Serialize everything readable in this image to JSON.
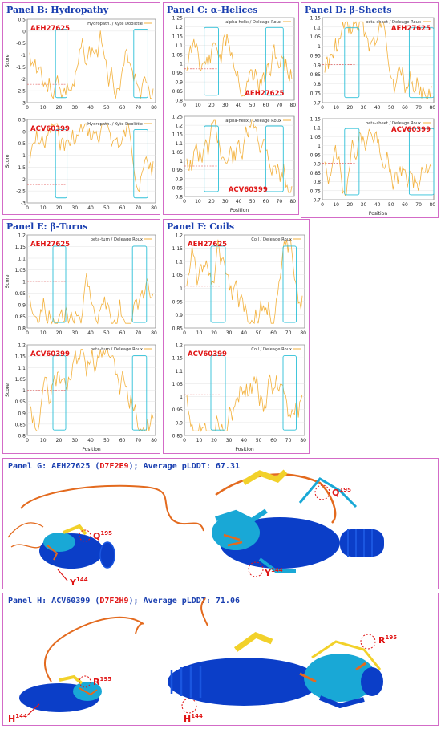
{
  "figure": {
    "panel_b": {
      "title": "Panel B: Hydropathy",
      "top": {
        "tag": "AEH27625",
        "legend": "Hydropath. / Kyte  Doolittle",
        "ylabel": "Score",
        "yticks": [
          "0.5",
          "0",
          "-0.5",
          "-1",
          "-1.5",
          "-2",
          "-2.5",
          "-3"
        ],
        "xticks": [
          "0",
          "10",
          "20",
          "30",
          "40",
          "50",
          "60",
          "70",
          "80"
        ]
      },
      "bottom": {
        "tag": "ACV60399",
        "legend": "Hydropath. / Kyte  Doolittle",
        "ylabel": "Score",
        "yticks": [
          "0.5",
          "0",
          "-0.5",
          "-1",
          "-1.5",
          "-2",
          "-2.5",
          "-3"
        ],
        "xticks": [
          "0",
          "10",
          "20",
          "30",
          "40",
          "50",
          "60",
          "70",
          "80"
        ]
      }
    },
    "panel_c": {
      "title": "Panel C: α-Helices",
      "top": {
        "tag": "AEH27625",
        "legend": "alpha-helix / Deleage  Roux",
        "yticks": [
          "1.25",
          "1.2",
          "1.15",
          "1.1",
          "1.05",
          "1",
          "0.95",
          "0.9",
          "0.85",
          "0.8"
        ],
        "xticks": [
          "0",
          "10",
          "20",
          "30",
          "40",
          "50",
          "60",
          "70",
          "80"
        ]
      },
      "bottom": {
        "tag": "ACV60399",
        "legend": "alpha-helix / Deleage  Roux",
        "xlabel": "Position",
        "yticks": [
          "1.25",
          "1.2",
          "1.15",
          "1.1",
          "1.05",
          "1",
          "0.95",
          "0.9",
          "0.85",
          "0.8"
        ],
        "xticks": [
          "0",
          "10",
          "20",
          "30",
          "40",
          "50",
          "60",
          "70",
          "80"
        ]
      }
    },
    "panel_d": {
      "title": "Panel D: β-Sheets",
      "top": {
        "tag": "AEH27625",
        "legend": "beta-sheet / Deleage  Roux",
        "yticks": [
          "1.15",
          "1.1",
          "1.05",
          "1",
          "0.95",
          "0.9",
          "0.85",
          "0.8",
          "0.75",
          "0.7"
        ],
        "xticks": [
          "0",
          "10",
          "20",
          "30",
          "40",
          "50",
          "60",
          "70",
          "80"
        ]
      },
      "bottom": {
        "tag": "ACV60399",
        "legend": "beta-sheet / Deleage  Roux",
        "xlabel": "Position",
        "yticks": [
          "1.15",
          "1.1",
          "1.05",
          "1",
          "0.95",
          "0.9",
          "0.85",
          "0.8",
          "0.75",
          "0.7"
        ],
        "xticks": [
          "0",
          "10",
          "20",
          "30",
          "40",
          "50",
          "60",
          "70",
          "80"
        ]
      }
    },
    "panel_e": {
      "title": "Panel E: β-Turns",
      "top": {
        "tag": "AEH27625",
        "legend": "beta-turn / Deleage  Roux",
        "ylabel": "Score",
        "yticks": [
          "1.2",
          "1.15",
          "1.1",
          "1.05",
          "1",
          "0.95",
          "0.9",
          "0.85",
          "0.8"
        ],
        "xticks": [
          "0",
          "10",
          "20",
          "30",
          "40",
          "50",
          "60",
          "70",
          "80"
        ]
      },
      "bottom": {
        "tag": "ACV60399",
        "legend": "beta-turn / Deleage  Roux",
        "ylabel": "Score",
        "xlabel": "Position",
        "yticks": [
          "1.2",
          "1.15",
          "1.1",
          "1.05",
          "1",
          "0.95",
          "0.9",
          "0.85",
          "0.8"
        ],
        "xticks": [
          "0",
          "10",
          "20",
          "30",
          "40",
          "50",
          "60",
          "70",
          "80"
        ]
      }
    },
    "panel_f": {
      "title": "Panel F: Coils",
      "top": {
        "tag": "AEH27625",
        "legend": "Coil / Deleage  Roux",
        "yticks": [
          "1.2",
          "1.15",
          "1.1",
          "1.05",
          "1",
          "0.95",
          "0.9",
          "0.85"
        ],
        "xticks": [
          "0",
          "10",
          "20",
          "30",
          "40",
          "50",
          "60",
          "70",
          "80"
        ]
      },
      "bottom": {
        "tag": "ACV60399",
        "legend": "Coil / Deleage  Roux",
        "xlabel": "Position",
        "yticks": [
          "1.2",
          "1.15",
          "1.1",
          "1.05",
          "1",
          "0.95",
          "0.9",
          "0.85"
        ],
        "xticks": [
          "0",
          "10",
          "20",
          "30",
          "40",
          "50",
          "60",
          "70",
          "80"
        ]
      }
    },
    "panel_g": {
      "caption_prefix": "Panel G: AEH27625 (",
      "caption_id": "D7F2E9",
      "caption_suffix": "); Average pLDDT: 67.31",
      "labels": {
        "small_q": "Q",
        "small_q_num": "195",
        "small_y": "Y",
        "small_y_num": "144",
        "big_q": "Q",
        "big_q_num": "195",
        "big_y": "Y",
        "big_y_num": "144"
      }
    },
    "panel_h": {
      "caption_prefix": "Panel H: ACV60399 (",
      "caption_id": "D7F2H9",
      "caption_suffix": "); Average pLDDT: 71.06",
      "labels": {
        "small_r": "R",
        "small_r_num": "195",
        "small_h": "H",
        "small_h_num": "144",
        "big_r": "R",
        "big_r_num": "195",
        "big_h": "H",
        "big_h_num": "144"
      }
    },
    "colors": {
      "border": "#d36bc7",
      "title": "#1a3fb0",
      "series": "#f3b13c",
      "highlight": "#2ec0d8",
      "tag": "#e01515",
      "threshold": "#e04040",
      "plddt_very_high": "#0b3ec8",
      "plddt_confident": "#19a8d6",
      "plddt_low": "#f2d12a",
      "plddt_very_low": "#e36a1e"
    }
  }
}
